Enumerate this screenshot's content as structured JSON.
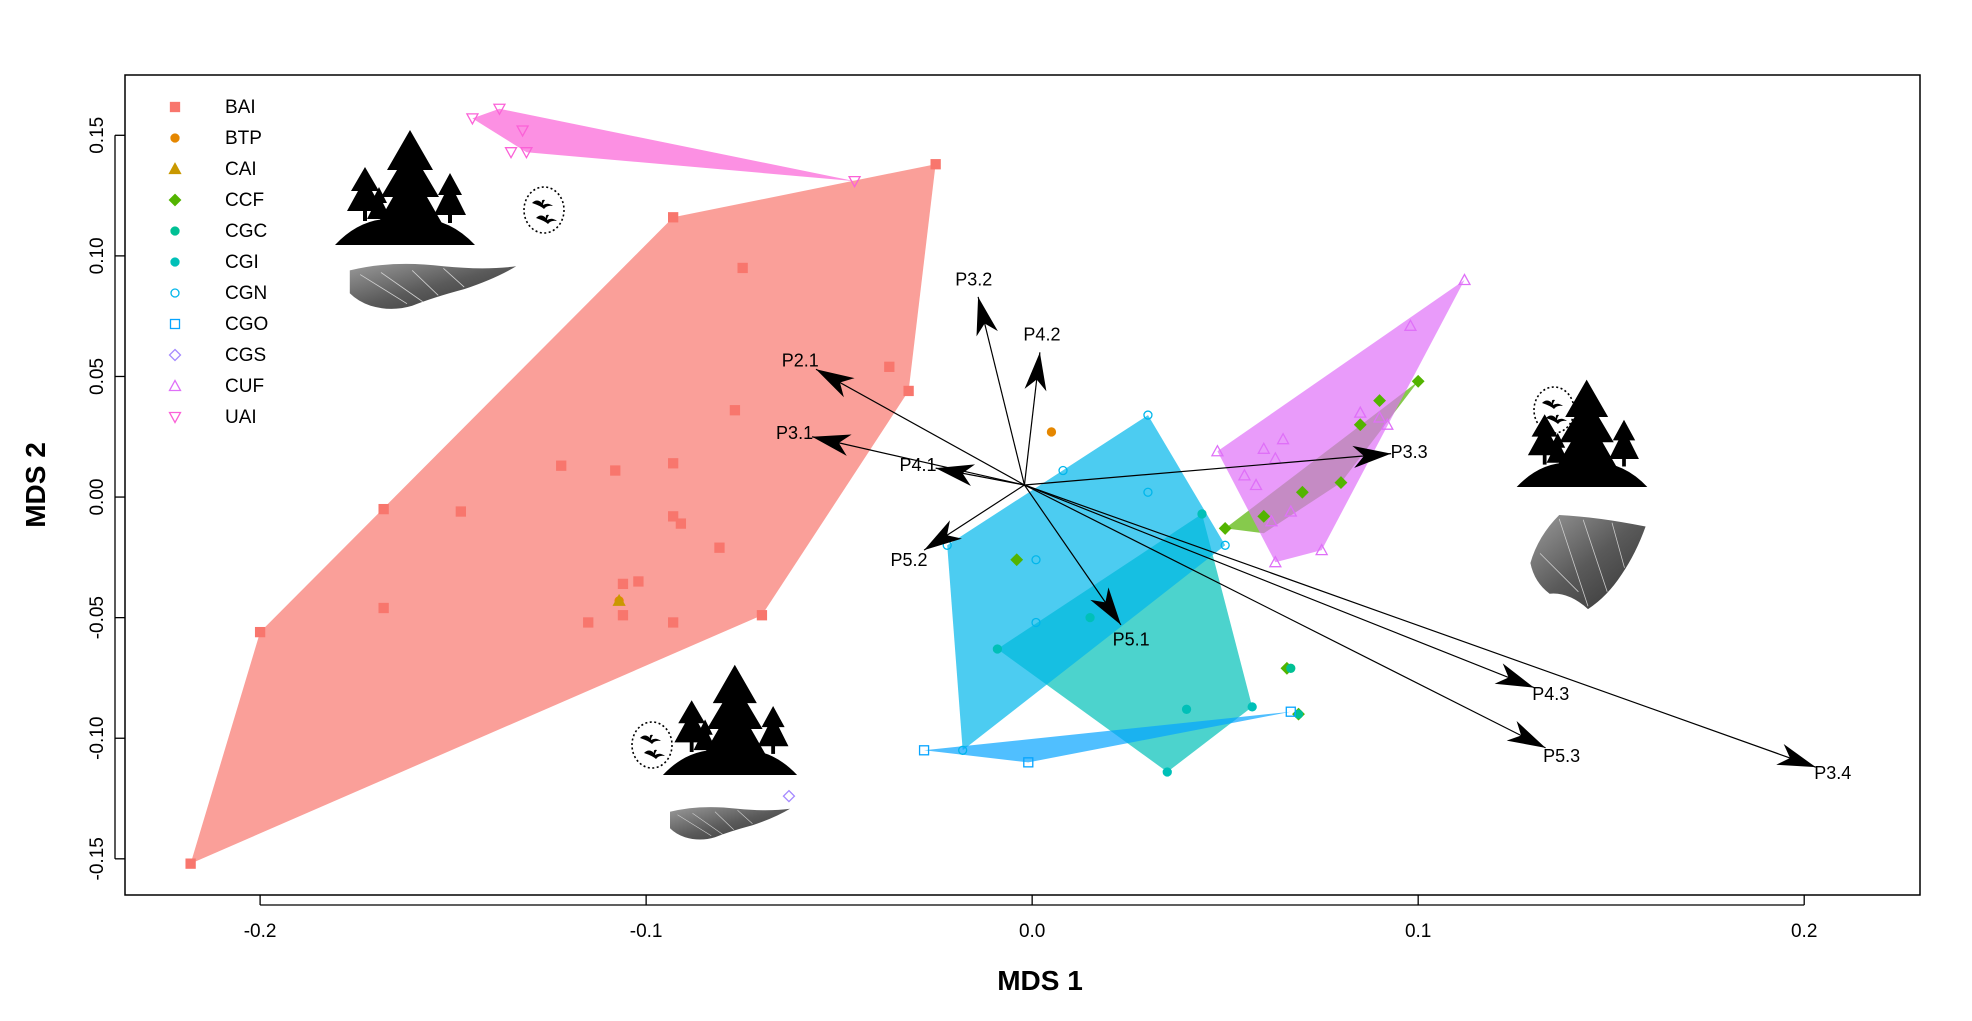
{
  "chart_data": {
    "type": "scatter",
    "subtype": "MDS ordination with convex hulls and vector arrows",
    "title": "",
    "xlabel": "MDS 1",
    "ylabel": "MDS 2",
    "xlim": [
      -0.235,
      0.23
    ],
    "ylim": [
      -0.165,
      0.175
    ],
    "x_ticks": [
      -0.2,
      -0.1,
      0.0,
      0.1,
      0.2
    ],
    "x_tick_labels": [
      "-0.2",
      "-0.1",
      "0.0",
      "0.1",
      "0.2"
    ],
    "y_ticks": [
      -0.15,
      -0.1,
      -0.05,
      0.0,
      0.05,
      0.1,
      0.15
    ],
    "y_tick_labels": [
      "-0.15",
      "-0.10",
      "-0.05",
      "0.00",
      "0.05",
      "0.10",
      "0.15"
    ],
    "grid": false,
    "legend_position": "top-left",
    "arrow_origin": [
      -0.002,
      0.005
    ],
    "series": [
      {
        "name": "BAI",
        "color": "#F8766D",
        "marker": "square-filled",
        "hull": [
          [
            -0.218,
            -0.152
          ],
          [
            -0.2,
            -0.056
          ],
          [
            -0.093,
            0.116
          ],
          [
            -0.025,
            0.138
          ],
          [
            -0.032,
            0.044
          ],
          [
            -0.07,
            -0.049
          ]
        ],
        "points": [
          [
            -0.218,
            -0.152
          ],
          [
            -0.2,
            -0.056
          ],
          [
            -0.168,
            -0.046
          ],
          [
            -0.168,
            -0.005
          ],
          [
            -0.148,
            -0.006
          ],
          [
            -0.122,
            0.013
          ],
          [
            -0.115,
            -0.052
          ],
          [
            -0.108,
            0.011
          ],
          [
            -0.106,
            -0.036
          ],
          [
            -0.106,
            -0.049
          ],
          [
            -0.102,
            -0.035
          ],
          [
            -0.093,
            0.014
          ],
          [
            -0.093,
            -0.008
          ],
          [
            -0.093,
            -0.052
          ],
          [
            -0.091,
            -0.011
          ],
          [
            -0.093,
            0.116
          ],
          [
            -0.081,
            -0.021
          ],
          [
            -0.077,
            0.036
          ],
          [
            -0.075,
            0.095
          ],
          [
            -0.07,
            -0.049
          ],
          [
            -0.037,
            0.054
          ],
          [
            -0.032,
            0.044
          ],
          [
            -0.025,
            0.138
          ]
        ]
      },
      {
        "name": "BTP",
        "color": "#E58700",
        "marker": "circle-filled",
        "hull": [],
        "points": [
          [
            -0.107,
            -0.043
          ],
          [
            0.005,
            0.027
          ]
        ]
      },
      {
        "name": "CAI",
        "color": "#C99800",
        "marker": "triangle-filled",
        "hull": [],
        "points": [
          [
            -0.107,
            -0.043
          ]
        ]
      },
      {
        "name": "CCF",
        "color": "#53B400",
        "marker": "diamond-filled",
        "hull": [
          [
            0.05,
            -0.013
          ],
          [
            0.1,
            0.048
          ],
          [
            0.08,
            0.006
          ],
          [
            0.06,
            -0.015
          ]
        ],
        "points": [
          [
            0.05,
            -0.013
          ],
          [
            0.06,
            -0.008
          ],
          [
            0.07,
            0.002
          ],
          [
            0.08,
            0.006
          ],
          [
            0.085,
            0.03
          ],
          [
            0.09,
            0.04
          ],
          [
            0.1,
            0.048
          ],
          [
            -0.004,
            -0.026
          ],
          [
            0.066,
            -0.071
          ],
          [
            0.069,
            -0.09
          ]
        ]
      },
      {
        "name": "CGC",
        "color": "#00C094",
        "marker": "circle-filled",
        "hull": [],
        "points": [
          [
            0.067,
            -0.071
          ],
          [
            0.069,
            -0.09
          ]
        ]
      },
      {
        "name": "CGI",
        "color": "#00C0B8",
        "marker": "circle-filled",
        "hull": [
          [
            -0.009,
            -0.063
          ],
          [
            0.044,
            -0.007
          ],
          [
            0.057,
            -0.087
          ],
          [
            0.035,
            -0.114
          ]
        ],
        "points": [
          [
            -0.009,
            -0.063
          ],
          [
            0.044,
            -0.007
          ],
          [
            0.057,
            -0.087
          ],
          [
            0.035,
            -0.114
          ],
          [
            0.04,
            -0.088
          ],
          [
            0.015,
            -0.05
          ]
        ]
      },
      {
        "name": "CGN",
        "color": "#00B6EB",
        "marker": "circle-open",
        "hull": [
          [
            -0.022,
            -0.02
          ],
          [
            0.03,
            0.034
          ],
          [
            0.05,
            -0.02
          ],
          [
            -0.018,
            -0.105
          ]
        ],
        "points": [
          [
            -0.022,
            -0.02
          ],
          [
            0.03,
            0.034
          ],
          [
            0.03,
            0.002
          ],
          [
            0.008,
            0.011
          ],
          [
            0.001,
            -0.026
          ],
          [
            0.001,
            -0.052
          ],
          [
            -0.018,
            -0.105
          ],
          [
            0.05,
            -0.02
          ]
        ]
      },
      {
        "name": "CGO",
        "color": "#06A4FF",
        "marker": "square-open",
        "hull": [
          [
            -0.028,
            -0.105
          ],
          [
            0.067,
            -0.089
          ],
          [
            -0.001,
            -0.11
          ]
        ],
        "points": [
          [
            -0.028,
            -0.105
          ],
          [
            -0.001,
            -0.11
          ],
          [
            0.067,
            -0.089
          ]
        ]
      },
      {
        "name": "CGS",
        "color": "#A58AFF",
        "marker": "diamond-open",
        "hull": [],
        "points": [
          [
            -0.063,
            -0.124
          ]
        ]
      },
      {
        "name": "CUF",
        "color": "#DF70F8",
        "marker": "triangle-open",
        "hull": [
          [
            0.048,
            0.019
          ],
          [
            0.112,
            0.09
          ],
          [
            0.075,
            -0.022
          ],
          [
            0.063,
            -0.027
          ]
        ],
        "points": [
          [
            0.048,
            0.019
          ],
          [
            0.055,
            0.009
          ],
          [
            0.06,
            0.02
          ],
          [
            0.063,
            0.016
          ],
          [
            0.065,
            0.024
          ],
          [
            0.058,
            0.005
          ],
          [
            0.062,
            -0.01
          ],
          [
            0.067,
            -0.006
          ],
          [
            0.075,
            -0.022
          ],
          [
            0.063,
            -0.027
          ],
          [
            0.085,
            0.035
          ],
          [
            0.09,
            0.033
          ],
          [
            0.092,
            0.03
          ],
          [
            0.098,
            0.071
          ],
          [
            0.112,
            0.09
          ]
        ]
      },
      {
        "name": "UAI",
        "color": "#FB61D7",
        "marker": "triangle-down-open",
        "hull": [
          [
            -0.145,
            0.157
          ],
          [
            -0.138,
            0.161
          ],
          [
            -0.046,
            0.131
          ],
          [
            -0.131,
            0.143
          ]
        ],
        "points": [
          [
            -0.145,
            0.157
          ],
          [
            -0.138,
            0.161
          ],
          [
            -0.132,
            0.152
          ],
          [
            -0.135,
            0.143
          ],
          [
            -0.131,
            0.143
          ],
          [
            -0.046,
            0.131
          ]
        ]
      }
    ],
    "arrows": [
      {
        "label": "P2.1",
        "tip": [
          -0.056,
          0.053
        ]
      },
      {
        "label": "P3.1",
        "tip": [
          -0.057,
          0.025
        ]
      },
      {
        "label": "P4.1",
        "tip": [
          -0.025,
          0.012
        ]
      },
      {
        "label": "P3.2",
        "tip": [
          -0.014,
          0.083
        ]
      },
      {
        "label": "P4.2",
        "tip": [
          0.002,
          0.06
        ]
      },
      {
        "label": "P3.3",
        "tip": [
          0.093,
          0.018
        ]
      },
      {
        "label": "P5.2",
        "tip": [
          -0.028,
          -0.022
        ]
      },
      {
        "label": "P5.1",
        "tip": [
          0.023,
          -0.053
        ]
      },
      {
        "label": "P4.3",
        "tip": [
          0.13,
          -0.079
        ]
      },
      {
        "label": "P5.3",
        "tip": [
          0.133,
          -0.104
        ]
      },
      {
        "label": "P3.4",
        "tip": [
          0.203,
          -0.112
        ]
      }
    ]
  }
}
